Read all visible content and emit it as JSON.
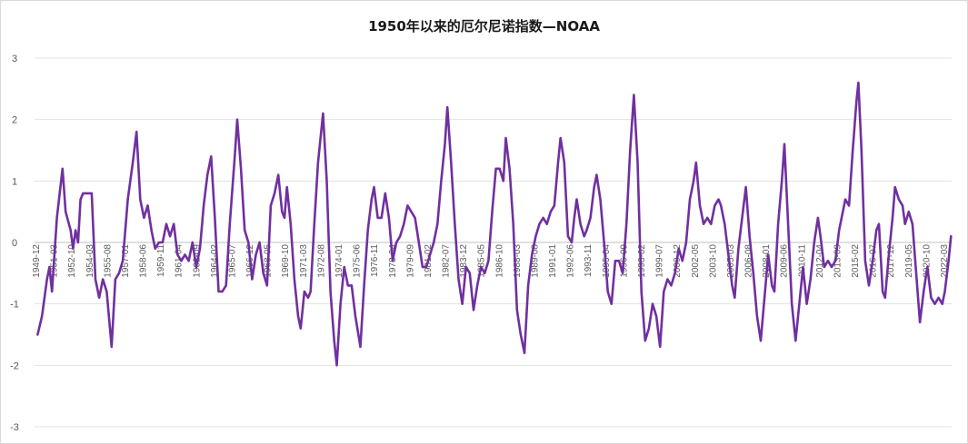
{
  "chart_data": {
    "type": "line",
    "title": "1950年以来的厄尔尼诺指数—NOAA",
    "xlabel": "",
    "ylabel": "",
    "ylim": [
      -3,
      3
    ],
    "y_ticks": [
      "3",
      "2",
      "1",
      "0",
      "-1",
      "-2",
      "-3"
    ],
    "grid": "horizontal",
    "legend": "none",
    "line_color": "#7030A0",
    "x_tick_labels": [
      "1949-12",
      "1951-03",
      "1952-10",
      "1954-03",
      "1955-08",
      "1957-01",
      "1958-06",
      "1959-11",
      "1961-04",
      "1962-09",
      "1964-02",
      "1965-07",
      "1966-12",
      "1968-05",
      "1969-10",
      "1971-03",
      "1972-08",
      "1974-01",
      "1975-06",
      "1976-11",
      "1978-04",
      "1979-09",
      "1981-02",
      "1982-07",
      "1983-12",
      "1985-05",
      "1986-10",
      "1988-03",
      "1989-08",
      "1991-01",
      "1992-06",
      "1993-11",
      "1995-04",
      "1996-09",
      "1998-02",
      "1999-07",
      "2000-12",
      "2002-05",
      "2003-10",
      "2005-03",
      "2006-08",
      "2008-01",
      "2009-06",
      "2010-11",
      "2012-04",
      "2013-09",
      "2015-02",
      "2016-07",
      "2017-12",
      "2019-05",
      "2020-10",
      "2022-03"
    ],
    "series": [
      {
        "values": [
          [
            1949.95,
            -1.5
          ],
          [
            1950.3,
            -1.2
          ],
          [
            1950.7,
            -0.6
          ],
          [
            1950.9,
            -0.4
          ],
          [
            1951.1,
            -0.8
          ],
          [
            1951.5,
            0.4
          ],
          [
            1951.95,
            1.2
          ],
          [
            1952.2,
            0.5
          ],
          [
            1952.6,
            0.2
          ],
          [
            1952.8,
            -0.1
          ],
          [
            1953.0,
            0.2
          ],
          [
            1953.2,
            0.0
          ],
          [
            1953.4,
            0.7
          ],
          [
            1953.6,
            0.8
          ],
          [
            1954.0,
            0.8
          ],
          [
            1954.3,
            0.8
          ],
          [
            1954.6,
            -0.6
          ],
          [
            1954.9,
            -0.9
          ],
          [
            1955.2,
            -0.6
          ],
          [
            1955.5,
            -0.8
          ],
          [
            1955.9,
            -1.7
          ],
          [
            1956.2,
            -0.6
          ],
          [
            1956.5,
            -0.5
          ],
          [
            1956.8,
            -0.3
          ],
          [
            1957.2,
            0.7
          ],
          [
            1957.6,
            1.3
          ],
          [
            1957.9,
            1.8
          ],
          [
            1958.2,
            0.7
          ],
          [
            1958.5,
            0.4
          ],
          [
            1958.8,
            0.6
          ],
          [
            1959.1,
            0.2
          ],
          [
            1959.4,
            -0.1
          ],
          [
            1959.7,
            0.0
          ],
          [
            1960.0,
            0.0
          ],
          [
            1960.3,
            0.3
          ],
          [
            1960.6,
            0.1
          ],
          [
            1960.9,
            0.3
          ],
          [
            1961.2,
            -0.2
          ],
          [
            1961.5,
            -0.3
          ],
          [
            1961.8,
            -0.2
          ],
          [
            1962.1,
            -0.3
          ],
          [
            1962.4,
            0.0
          ],
          [
            1962.7,
            -0.4
          ],
          [
            1963.0,
            -0.1
          ],
          [
            1963.3,
            0.6
          ],
          [
            1963.6,
            1.1
          ],
          [
            1963.9,
            1.4
          ],
          [
            1964.2,
            0.4
          ],
          [
            1964.5,
            -0.8
          ],
          [
            1964.8,
            -0.8
          ],
          [
            1965.1,
            -0.7
          ],
          [
            1965.4,
            0.3
          ],
          [
            1965.8,
            1.4
          ],
          [
            1966.0,
            2.0
          ],
          [
            1966.3,
            1.2
          ],
          [
            1966.6,
            0.2
          ],
          [
            1966.9,
            0.0
          ],
          [
            1967.2,
            -0.6
          ],
          [
            1967.5,
            -0.2
          ],
          [
            1967.8,
            0.0
          ],
          [
            1968.1,
            -0.5
          ],
          [
            1968.4,
            -0.7
          ],
          [
            1968.7,
            0.6
          ],
          [
            1969.0,
            0.8
          ],
          [
            1969.3,
            1.1
          ],
          [
            1969.6,
            0.5
          ],
          [
            1969.8,
            0.4
          ],
          [
            1970.0,
            0.9
          ],
          [
            1970.3,
            0.3
          ],
          [
            1970.6,
            -0.6
          ],
          [
            1970.9,
            -1.2
          ],
          [
            1971.1,
            -1.4
          ],
          [
            1971.4,
            -0.8
          ],
          [
            1971.7,
            -0.9
          ],
          [
            1971.9,
            -0.8
          ],
          [
            1972.2,
            0.3
          ],
          [
            1972.5,
            1.3
          ],
          [
            1972.9,
            2.1
          ],
          [
            1973.2,
            1.0
          ],
          [
            1973.5,
            -0.8
          ],
          [
            1973.8,
            -1.6
          ],
          [
            1974.0,
            -2.0
          ],
          [
            1974.3,
            -1.0
          ],
          [
            1974.6,
            -0.4
          ],
          [
            1974.9,
            -0.7
          ],
          [
            1975.2,
            -0.7
          ],
          [
            1975.5,
            -1.2
          ],
          [
            1975.9,
            -1.7
          ],
          [
            1976.2,
            -0.7
          ],
          [
            1976.5,
            0.2
          ],
          [
            1976.8,
            0.7
          ],
          [
            1977.0,
            0.9
          ],
          [
            1977.3,
            0.4
          ],
          [
            1977.6,
            0.4
          ],
          [
            1977.9,
            0.8
          ],
          [
            1978.2,
            0.4
          ],
          [
            1978.5,
            -0.3
          ],
          [
            1978.8,
            0.0
          ],
          [
            1979.1,
            0.1
          ],
          [
            1979.4,
            0.3
          ],
          [
            1979.7,
            0.6
          ],
          [
            1980.0,
            0.5
          ],
          [
            1980.3,
            0.4
          ],
          [
            1980.6,
            0.0
          ],
          [
            1980.9,
            -0.4
          ],
          [
            1981.2,
            -0.4
          ],
          [
            1981.5,
            -0.2
          ],
          [
            1981.8,
            0.0
          ],
          [
            1982.1,
            0.3
          ],
          [
            1982.4,
            1.0
          ],
          [
            1982.7,
            1.6
          ],
          [
            1982.9,
            2.2
          ],
          [
            1983.2,
            1.3
          ],
          [
            1983.5,
            0.3
          ],
          [
            1983.8,
            -0.6
          ],
          [
            1984.1,
            -1.0
          ],
          [
            1984.4,
            -0.4
          ],
          [
            1984.7,
            -0.5
          ],
          [
            1985.0,
            -1.1
          ],
          [
            1985.3,
            -0.7
          ],
          [
            1985.6,
            -0.4
          ],
          [
            1985.9,
            -0.5
          ],
          [
            1986.2,
            -0.3
          ],
          [
            1986.5,
            0.5
          ],
          [
            1986.8,
            1.2
          ],
          [
            1987.1,
            1.2
          ],
          [
            1987.4,
            1.0
          ],
          [
            1987.6,
            1.7
          ],
          [
            1987.9,
            1.2
          ],
          [
            1988.2,
            0.3
          ],
          [
            1988.5,
            -1.1
          ],
          [
            1988.8,
            -1.5
          ],
          [
            1989.1,
            -1.8
          ],
          [
            1989.4,
            -0.7
          ],
          [
            1989.7,
            -0.2
          ],
          [
            1990.0,
            0.1
          ],
          [
            1990.3,
            0.3
          ],
          [
            1990.6,
            0.4
          ],
          [
            1990.9,
            0.3
          ],
          [
            1991.2,
            0.5
          ],
          [
            1991.5,
            0.6
          ],
          [
            1991.8,
            1.3
          ],
          [
            1992.0,
            1.7
          ],
          [
            1992.3,
            1.3
          ],
          [
            1992.6,
            0.1
          ],
          [
            1992.9,
            0.0
          ],
          [
            1993.1,
            0.4
          ],
          [
            1993.3,
            0.7
          ],
          [
            1993.6,
            0.3
          ],
          [
            1993.9,
            0.1
          ],
          [
            1994.1,
            0.2
          ],
          [
            1994.4,
            0.4
          ],
          [
            1994.7,
            0.9
          ],
          [
            1994.9,
            1.1
          ],
          [
            1995.2,
            0.7
          ],
          [
            1995.5,
            0.0
          ],
          [
            1995.8,
            -0.8
          ],
          [
            1996.1,
            -1.0
          ],
          [
            1996.4,
            -0.3
          ],
          [
            1996.7,
            -0.3
          ],
          [
            1997.0,
            -0.5
          ],
          [
            1997.3,
            0.3
          ],
          [
            1997.6,
            1.5
          ],
          [
            1997.9,
            2.4
          ],
          [
            1998.2,
            1.3
          ],
          [
            1998.5,
            -0.8
          ],
          [
            1998.8,
            -1.6
          ],
          [
            1999.1,
            -1.4
          ],
          [
            1999.4,
            -1.0
          ],
          [
            1999.7,
            -1.2
          ],
          [
            2000.0,
            -1.7
          ],
          [
            2000.3,
            -0.8
          ],
          [
            2000.6,
            -0.6
          ],
          [
            2000.9,
            -0.7
          ],
          [
            2001.2,
            -0.5
          ],
          [
            2001.5,
            -0.1
          ],
          [
            2001.8,
            -0.3
          ],
          [
            2002.1,
            0.0
          ],
          [
            2002.4,
            0.7
          ],
          [
            2002.7,
            1.0
          ],
          [
            2002.9,
            1.3
          ],
          [
            2003.2,
            0.6
          ],
          [
            2003.5,
            0.3
          ],
          [
            2003.8,
            0.4
          ],
          [
            2004.1,
            0.3
          ],
          [
            2004.4,
            0.6
          ],
          [
            2004.7,
            0.7
          ],
          [
            2004.9,
            0.6
          ],
          [
            2005.2,
            0.3
          ],
          [
            2005.5,
            -0.2
          ],
          [
            2005.8,
            -0.7
          ],
          [
            2006.0,
            -0.9
          ],
          [
            2006.3,
            -0.1
          ],
          [
            2006.6,
            0.4
          ],
          [
            2006.9,
            0.9
          ],
          [
            2007.2,
            0.1
          ],
          [
            2007.5,
            -0.5
          ],
          [
            2007.8,
            -1.2
          ],
          [
            2008.1,
            -1.6
          ],
          [
            2008.4,
            -0.9
          ],
          [
            2008.7,
            -0.2
          ],
          [
            2009.0,
            -0.7
          ],
          [
            2009.2,
            -0.8
          ],
          [
            2009.5,
            0.3
          ],
          [
            2009.8,
            1.0
          ],
          [
            2010.0,
            1.6
          ],
          [
            2010.3,
            0.3
          ],
          [
            2010.6,
            -1.0
          ],
          [
            2010.9,
            -1.6
          ],
          [
            2011.2,
            -1.0
          ],
          [
            2011.5,
            -0.4
          ],
          [
            2011.8,
            -1.0
          ],
          [
            2012.1,
            -0.6
          ],
          [
            2012.4,
            0.0
          ],
          [
            2012.7,
            0.4
          ],
          [
            2012.9,
            0.1
          ],
          [
            2013.2,
            -0.4
          ],
          [
            2013.5,
            -0.3
          ],
          [
            2013.8,
            -0.4
          ],
          [
            2014.1,
            -0.3
          ],
          [
            2014.4,
            0.2
          ],
          [
            2014.7,
            0.5
          ],
          [
            2014.9,
            0.7
          ],
          [
            2015.2,
            0.6
          ],
          [
            2015.5,
            1.5
          ],
          [
            2015.8,
            2.3
          ],
          [
            2015.95,
            2.6
          ],
          [
            2016.2,
            1.5
          ],
          [
            2016.5,
            -0.3
          ],
          [
            2016.8,
            -0.7
          ],
          [
            2017.1,
            -0.3
          ],
          [
            2017.4,
            0.2
          ],
          [
            2017.6,
            0.3
          ],
          [
            2017.9,
            -0.8
          ],
          [
            2018.1,
            -0.9
          ],
          [
            2018.4,
            -0.2
          ],
          [
            2018.7,
            0.4
          ],
          [
            2018.9,
            0.9
          ],
          [
            2019.2,
            0.7
          ],
          [
            2019.5,
            0.6
          ],
          [
            2019.7,
            0.3
          ],
          [
            2020.0,
            0.5
          ],
          [
            2020.3,
            0.3
          ],
          [
            2020.6,
            -0.5
          ],
          [
            2020.9,
            -1.3
          ],
          [
            2021.2,
            -0.8
          ],
          [
            2021.5,
            -0.4
          ],
          [
            2021.8,
            -0.9
          ],
          [
            2022.1,
            -1.0
          ],
          [
            2022.4,
            -0.9
          ],
          [
            2022.7,
            -1.0
          ],
          [
            2022.9,
            -0.8
          ],
          [
            2023.2,
            -0.3
          ],
          [
            2023.4,
            0.1
          ]
        ]
      }
    ]
  }
}
